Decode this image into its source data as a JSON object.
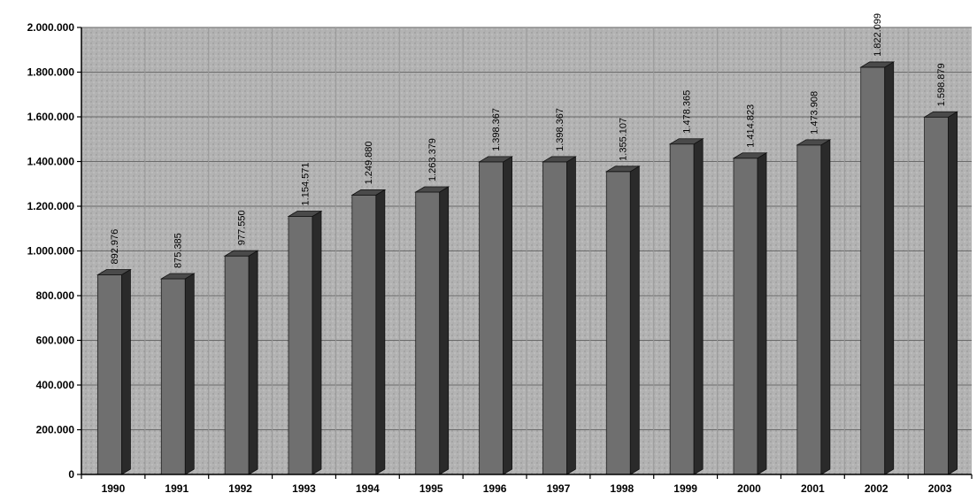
{
  "chart_data": {
    "type": "bar",
    "categories": [
      "1990",
      "1991",
      "1992",
      "1993",
      "1994",
      "1995",
      "1996",
      "1997",
      "1998",
      "1999",
      "2000",
      "2001",
      "2002",
      "2003"
    ],
    "values": [
      892976,
      875385,
      977550,
      1154571,
      1249880,
      1263379,
      1398367,
      1398367,
      1355107,
      1478365,
      1414823,
      1473908,
      1822099,
      1598879
    ],
    "value_labels": [
      "892.976",
      "875.385",
      "977.550",
      "1.154.571",
      "1.249.880",
      "1.263.379",
      "1.398.367",
      "1.398.367",
      "1.355.107",
      "1.478.365",
      "1.414.823",
      "1.473.908",
      "1.822.099",
      "1.598.879"
    ],
    "y_ticks": [
      0,
      200000,
      400000,
      600000,
      800000,
      1000000,
      1200000,
      1400000,
      1600000,
      1800000,
      2000000
    ],
    "y_tick_labels": [
      "0",
      "200.000",
      "400.000",
      "600.000",
      "800.000",
      "1.000.000",
      "1.200.000",
      "1.400.000",
      "1.600.000",
      "1.800.000",
      "2.000.000"
    ],
    "ylim": [
      0,
      2000000
    ],
    "grid": true,
    "style": "3d-column",
    "title": "",
    "xlabel": "",
    "ylabel": "",
    "colors": {
      "plot_bg": "#b3b3b3",
      "bar_front": "#6f6f6f",
      "bar_side": "#2a2a2a",
      "bar_top": "#4a4a4a",
      "grid": "#6a6a6a",
      "axis": "#000000"
    }
  }
}
